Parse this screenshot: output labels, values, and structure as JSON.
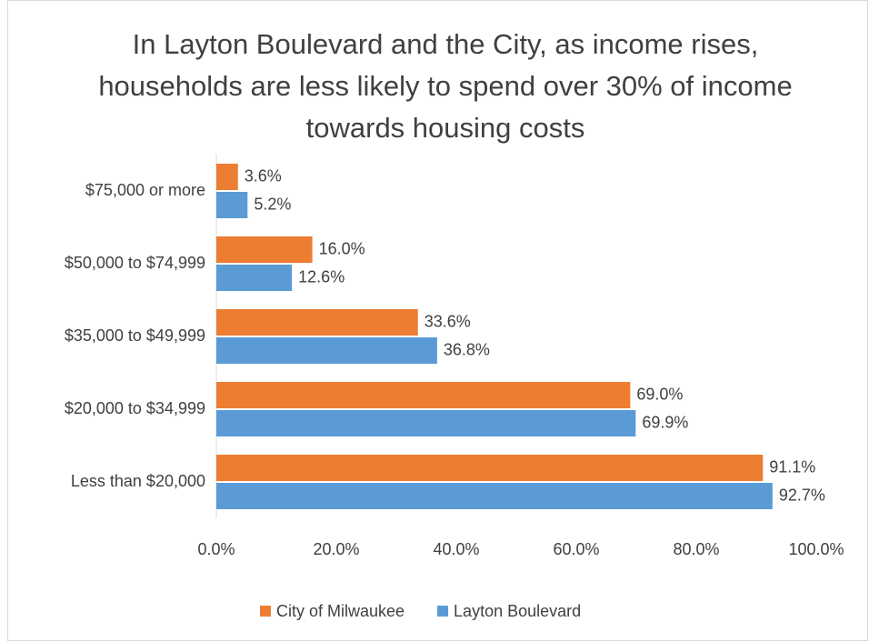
{
  "chart_data": {
    "type": "bar",
    "orientation": "horizontal",
    "title": "In Layton Boulevard and the City, as income rises, households are less likely to spend over 30% of income towards housing costs",
    "categories": [
      "$75,000 or more",
      "$50,000 to $74,999",
      "$35,000 to $49,999",
      "$20,000 to $34,999",
      "Less than $20,000"
    ],
    "series": [
      {
        "name": "City of Milwaukee",
        "color": "#ed7d31",
        "values": [
          3.6,
          16.0,
          33.6,
          69.0,
          91.1
        ],
        "value_labels": [
          "3.6%",
          "16.0%",
          "33.6%",
          "69.0%",
          "91.1%"
        ]
      },
      {
        "name": "Layton Boulevard",
        "color": "#5b9bd5",
        "values": [
          5.2,
          12.6,
          36.8,
          69.9,
          92.7
        ],
        "value_labels": [
          "5.2%",
          "12.6%",
          "36.8%",
          "69.9%",
          "92.7%"
        ]
      }
    ],
    "xlim": [
      0,
      100
    ],
    "xticks": [
      {
        "value": 0,
        "label": "0.0%"
      },
      {
        "value": 20,
        "label": "20.0%"
      },
      {
        "value": 40,
        "label": "40.0%"
      },
      {
        "value": 60,
        "label": "60.0%"
      },
      {
        "value": 80,
        "label": "80.0%"
      },
      {
        "value": 100,
        "label": "100.0%"
      }
    ],
    "grid": false,
    "legend": "bottom"
  }
}
